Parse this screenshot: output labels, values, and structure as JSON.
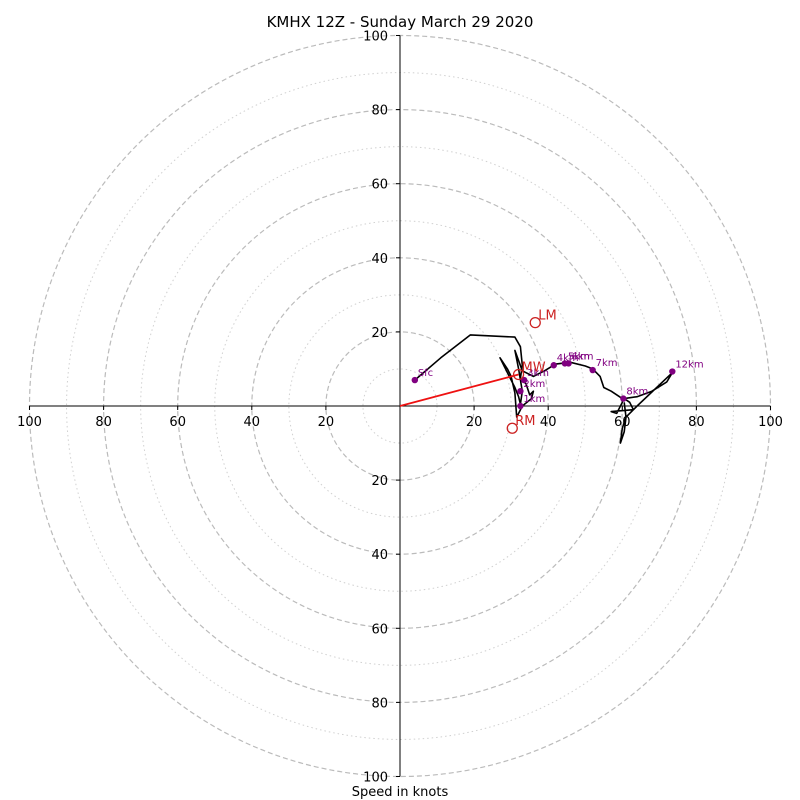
{
  "chart_data": {
    "type": "hodograph",
    "title": "KMHX 12Z - Sunday March 29 2020",
    "xlabel": "Speed in knots",
    "range": [
      -100,
      100
    ],
    "ring_major": [
      20,
      40,
      60,
      80,
      100
    ],
    "ring_minor": [
      10,
      30,
      50,
      70,
      90
    ],
    "tick_labels": {
      "x": [
        "100",
        "80",
        "60",
        "40",
        "20",
        "20",
        "40",
        "60",
        "80",
        "100"
      ],
      "y": [
        "100",
        "80",
        "60",
        "40",
        "20",
        "20",
        "40",
        "60",
        "80",
        "100"
      ]
    },
    "hodograph_trace": [
      [
        4,
        7
      ],
      [
        11,
        13
      ],
      [
        19,
        19.2
      ],
      [
        31,
        18.6
      ],
      [
        32.5,
        16
      ],
      [
        33,
        11
      ],
      [
        32.5,
        7.5
      ],
      [
        34,
        6
      ],
      [
        35,
        3
      ],
      [
        36,
        4
      ],
      [
        35.5,
        2
      ],
      [
        33,
        0
      ],
      [
        32,
        -2
      ],
      [
        31.5,
        -3
      ],
      [
        31,
        3.5
      ],
      [
        30,
        8
      ],
      [
        29,
        10
      ],
      [
        27,
        13
      ],
      [
        29,
        9
      ],
      [
        31,
        5
      ],
      [
        32,
        2.5
      ],
      [
        32.5,
        0.5
      ],
      [
        33,
        4
      ],
      [
        32,
        10
      ],
      [
        31,
        15
      ],
      [
        33,
        9.5
      ],
      [
        36,
        8
      ],
      [
        39,
        9.5
      ],
      [
        42,
        11.3
      ],
      [
        46,
        11.8
      ],
      [
        50,
        10.8
      ],
      [
        52,
        10
      ],
      [
        54,
        8
      ],
      [
        55,
        5
      ],
      [
        57,
        4
      ],
      [
        60,
        2
      ],
      [
        60,
        1
      ],
      [
        58.5,
        -2
      ],
      [
        57,
        -1.5
      ],
      [
        63,
        -1
      ],
      [
        62,
        1
      ],
      [
        60.5,
        2
      ],
      [
        64,
        2.5
      ],
      [
        68,
        4
      ],
      [
        72,
        6.5
      ],
      [
        73.5,
        9
      ],
      [
        64,
        0
      ],
      [
        61,
        -3
      ],
      [
        60,
        -6
      ],
      [
        59.5,
        -10
      ],
      [
        60.5,
        -7
      ],
      [
        61,
        -3
      ],
      [
        60.5,
        1
      ]
    ],
    "height_markers": [
      {
        "label": "Sfc",
        "u": 4,
        "v": 7
      },
      {
        "label": "1km",
        "u": 32.5,
        "v": 0
      },
      {
        "label": "2km",
        "u": 32.5,
        "v": 4
      },
      {
        "label": "3km",
        "u": 33.5,
        "v": 7
      },
      {
        "label": "4km",
        "u": 41.5,
        "v": 11
      },
      {
        "label": "5km",
        "u": 44.5,
        "v": 11.5
      },
      {
        "label": "6km",
        "u": 45.5,
        "v": 11.5
      },
      {
        "label": "7km",
        "u": 52,
        "v": 9.7
      },
      {
        "label": "8km",
        "u": 60.3,
        "v": 2
      },
      {
        "label": "12km",
        "u": 73.5,
        "v": 9.3
      }
    ],
    "storm_motions": [
      {
        "label": "LM",
        "u": 36.5,
        "v": 22.5
      },
      {
        "label": "MW",
        "u": 32,
        "v": 8.5
      },
      {
        "label": "RM",
        "u": 30.3,
        "v": -6
      }
    ],
    "shear_vector": {
      "from": [
        0,
        0
      ],
      "to": [
        32,
        8.5
      ]
    },
    "colors": {
      "trace": "#000000",
      "markers": "#800080",
      "motion": "#cc2222",
      "shear": "#ee1111",
      "grid": "#bbbbbb"
    }
  }
}
